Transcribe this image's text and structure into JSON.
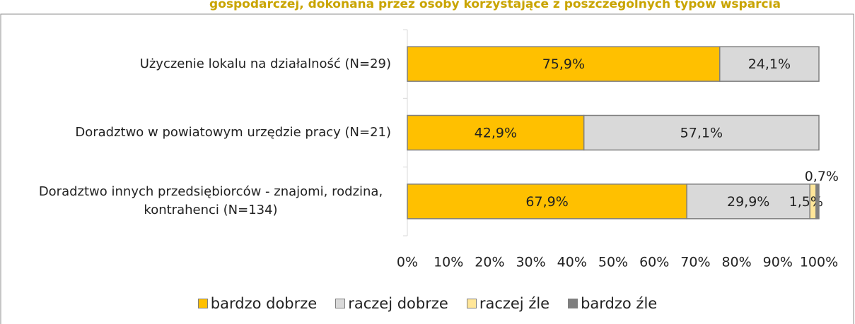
{
  "chart_data": {
    "type": "stacked_barh",
    "title": "gospodarczej, dokonana przez osoby korzystające z poszczególnych typów wsparcia",
    "categories": [
      "Użyczenie lokalu na działalność (N=29)",
      "Doradztwo w powiatowym urzędzie pracy (N=21)",
      "Doradztwo innych przedsiębiorców - znajomi, rodzina, kontrahenci (N=134)"
    ],
    "series": [
      {
        "name": "bardzo dobrze",
        "color": "#ffc000",
        "values": [
          75.9,
          42.9,
          67.9
        ],
        "value_labels": [
          "75,9%",
          "42,9%",
          "67,9%"
        ]
      },
      {
        "name": "raczej dobrze",
        "color": "#d9d9d9",
        "values": [
          24.1,
          57.1,
          29.9
        ],
        "value_labels": [
          "24,1%",
          "57,1%",
          "29,9%"
        ]
      },
      {
        "name": "raczej źle",
        "color": "#ffe699",
        "values": [
          0,
          0,
          1.5
        ],
        "value_labels": [
          null,
          null,
          "1,5%"
        ]
      },
      {
        "name": "bardzo źle",
        "color": "#7f7f7f",
        "values": [
          0,
          0,
          0.7
        ],
        "value_labels": [
          null,
          null,
          "0,7%"
        ]
      }
    ],
    "xlim": [
      0,
      100
    ],
    "xticks": [
      {
        "value": 0,
        "label": "0%"
      },
      {
        "value": 10,
        "label": "10%"
      },
      {
        "value": 20,
        "label": "20%"
      },
      {
        "value": 30,
        "label": "30%"
      },
      {
        "value": 40,
        "label": "40%"
      },
      {
        "value": 50,
        "label": "50%"
      },
      {
        "value": 60,
        "label": "60%"
      },
      {
        "value": 70,
        "label": "70%"
      },
      {
        "value": 80,
        "label": "80%"
      },
      {
        "value": 90,
        "label": "90%"
      },
      {
        "value": 100,
        "label": "100%"
      }
    ],
    "legend": "bottom"
  }
}
